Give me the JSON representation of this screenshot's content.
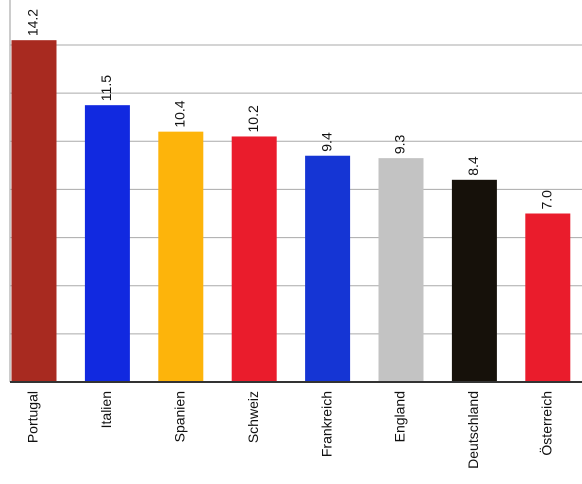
{
  "chart_data": {
    "type": "bar",
    "categories": [
      "Portugal",
      "Italien",
      "Spanien",
      "Schweiz",
      "Frankreich",
      "England",
      "Deutschland",
      "Österreich"
    ],
    "values": [
      14.2,
      11.5,
      10.4,
      10.2,
      9.4,
      9.3,
      8.4,
      7.0
    ],
    "value_labels": [
      "14.2",
      "11.5",
      "10.4",
      "10.2",
      "9.4",
      "9.3",
      "8.4",
      "7.0"
    ],
    "colors": [
      "#a82a20",
      "#1129e0",
      "#fdb40b",
      "#ea1c2c",
      "#1535d4",
      "#c3c3c3",
      "#16110a",
      "#ea1c2c"
    ],
    "ylim": [
      0,
      14
    ],
    "yticks": [
      0,
      2,
      4,
      6,
      8,
      10,
      12,
      14
    ],
    "grid": true
  }
}
